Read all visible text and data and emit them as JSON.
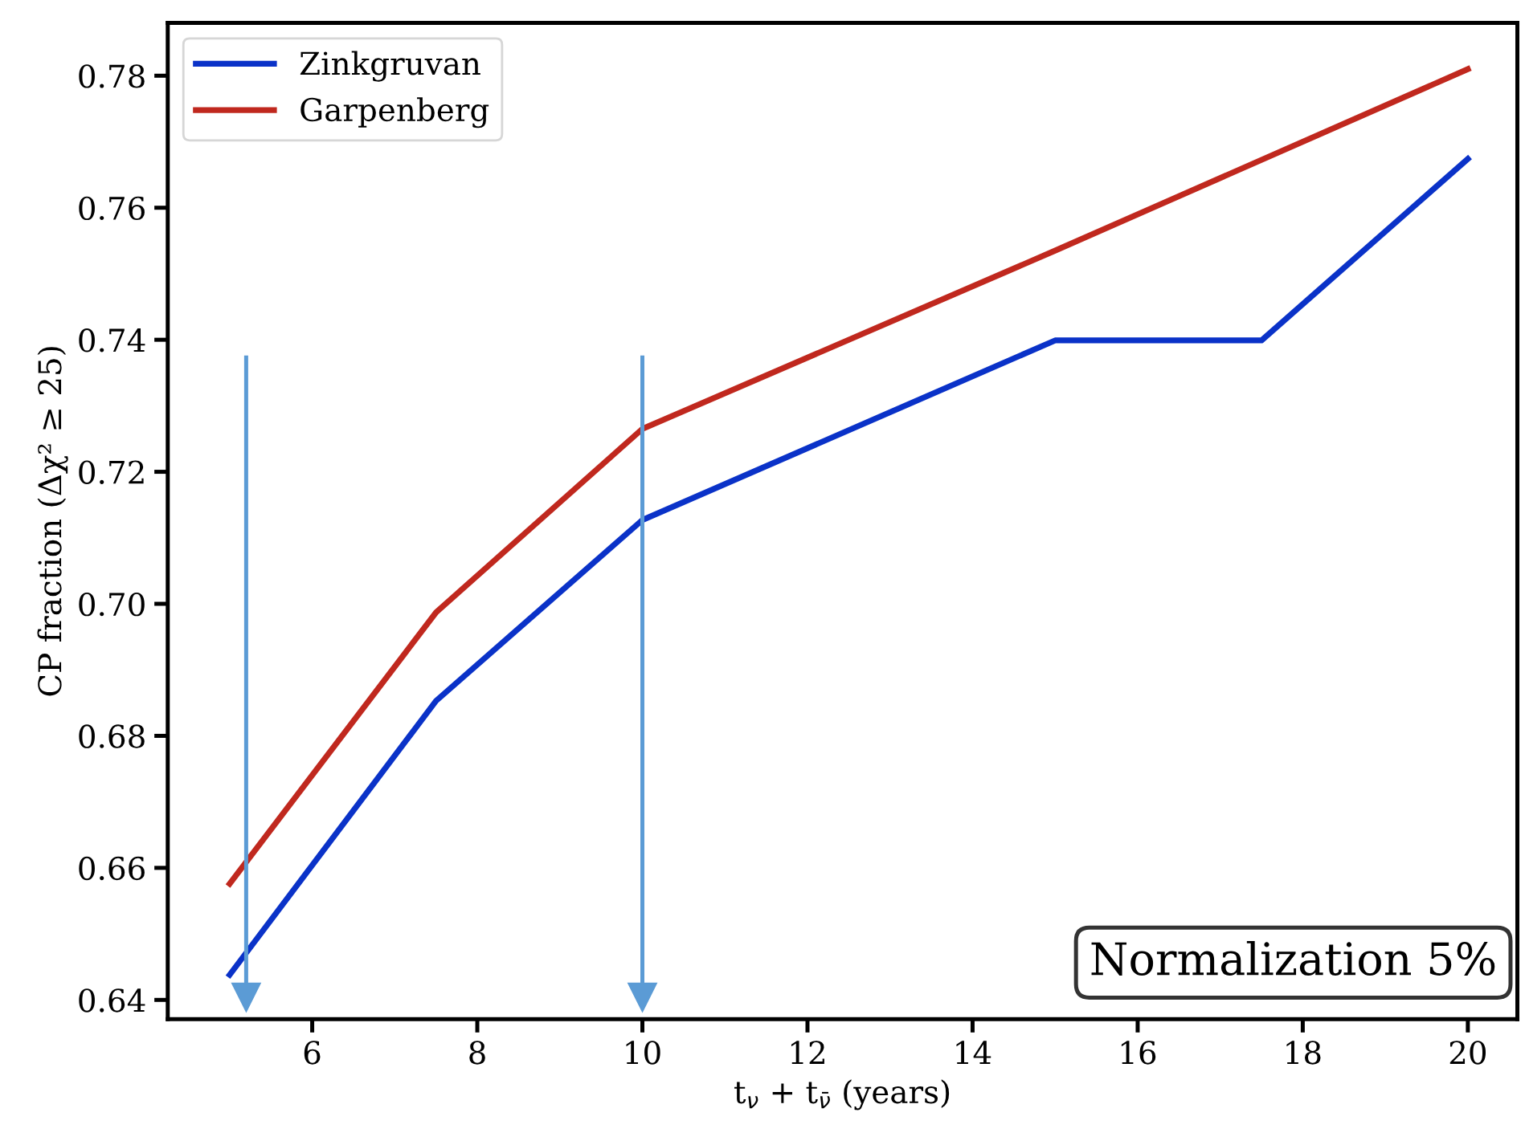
{
  "chart_data": {
    "type": "line",
    "xlabel": "t$_{ν}$ + t$_{ν̄}$ (years)",
    "ylabel": "CP fraction (Δχ² ≥ 25)",
    "series": [
      {
        "name": "Zinkgruvan",
        "color": "#0a32c8",
        "x": [
          5,
          7.5,
          10,
          15,
          17.5,
          20
        ],
        "values": [
          0.6438,
          0.6853,
          0.7127,
          0.7399,
          0.7399,
          0.7674
        ]
      },
      {
        "name": "Garpenberg",
        "color": "#c0281e",
        "x": [
          5,
          7.5,
          10,
          15,
          20
        ],
        "values": [
          0.6576,
          0.6987,
          0.7265,
          0.7535,
          0.781
        ]
      }
    ],
    "ref_lines": [
      {
        "axis": "x",
        "value": 5.2,
        "color": "#5b9bd5"
      },
      {
        "axis": "x",
        "value": 10,
        "color": "#5b9bd5"
      }
    ],
    "annotations": [
      "Normalization 5%"
    ],
    "xlim": [
      4.25,
      20.6
    ],
    "ylim": [
      0.6371,
      0.788
    ],
    "xticks": [
      6,
      8,
      10,
      12,
      14,
      16,
      18,
      20
    ],
    "yticks": [
      {
        "value": 0.64,
        "label": "0.64"
      },
      {
        "value": 0.66,
        "label": "0.66"
      },
      {
        "value": 0.68,
        "label": "0.68"
      },
      {
        "value": 0.7,
        "label": "0.70"
      },
      {
        "value": 0.72,
        "label": "0.72"
      },
      {
        "value": 0.74,
        "label": "0.74"
      },
      {
        "value": 0.76,
        "label": "0.76"
      },
      {
        "value": 0.78,
        "label": "0.78"
      }
    ],
    "legend": "top left",
    "grid": false
  }
}
